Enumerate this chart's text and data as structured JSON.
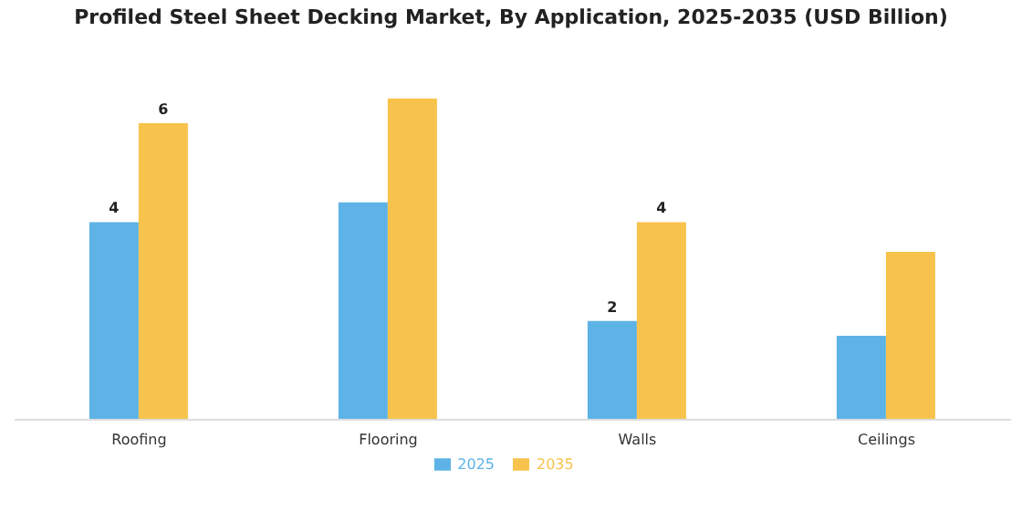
{
  "chart_data": {
    "type": "bar",
    "title": "Profiled Steel Sheet Decking Market, By Application, 2025-2035 (USD Billion)",
    "categories": [
      "Roofing",
      "Flooring",
      "Walls",
      "Ceilings"
    ],
    "series": [
      {
        "name": "2025",
        "color": "#5db3e6",
        "values": [
          4,
          4.4,
          2,
          1.7
        ],
        "value_labels": [
          "4",
          null,
          "2",
          null
        ]
      },
      {
        "name": "2035",
        "color": "#f8c34c",
        "values": [
          6,
          6.5,
          4,
          3.4
        ],
        "value_labels": [
          "6",
          null,
          "4",
          null
        ]
      }
    ],
    "legend": "bottom",
    "grid": false
  }
}
